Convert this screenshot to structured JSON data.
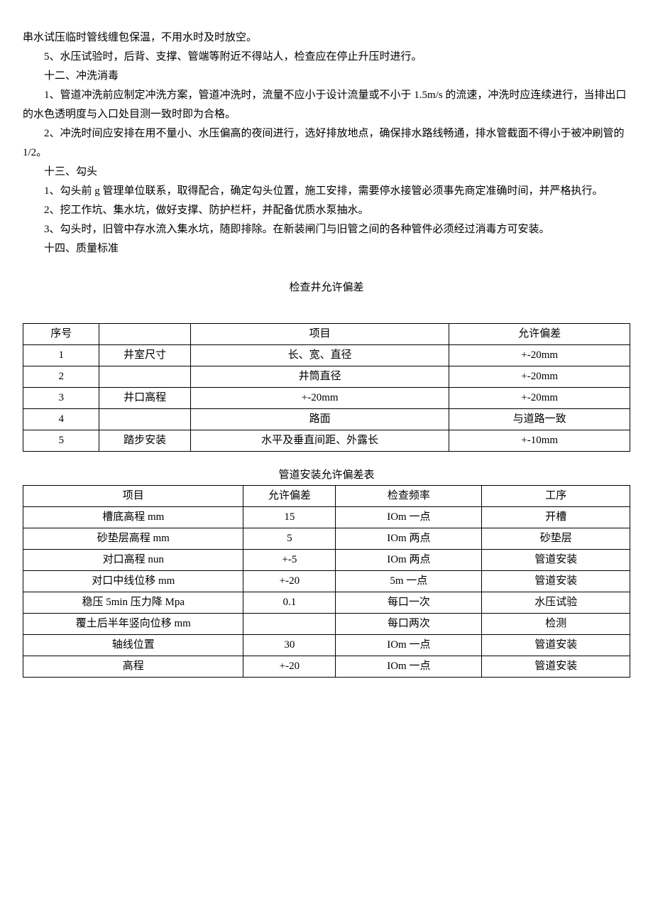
{
  "paras": [
    {
      "cls": "para-noindent",
      "text": "串水试压临时管线缠包保温，不用水时及时放空。"
    },
    {
      "cls": "para",
      "text": "5、水压试验时，后背、支撑、管端等附近不得站人，检查应在停止升压时进行。"
    },
    {
      "cls": "para",
      "text": "十二、冲洗消毒"
    },
    {
      "cls": "para",
      "text": "1、管道冲洗前应制定冲洗方案，管道冲洗时，流量不应小于设计流量或不小于 1.5m/s 的流速，冲洗时应连续进行，当排出口的水色透明度与入口处目测一致时即为合格。"
    },
    {
      "cls": "para",
      "text": "2、冲洗时间应安排在用不量小、水压偏高的夜间进行，选好排放地点，确保排水路线畅通，排水管截面不得小于被冲刷管的 1/2。"
    },
    {
      "cls": "para",
      "text": "十三、勾头"
    },
    {
      "cls": "para",
      "text": "1、勾头前 g 管理单位联系，取得配合，确定勾头位置，施工安排，需要停水接管必须事先商定准确时间，并严格执行。"
    },
    {
      "cls": "para",
      "text": "2、挖工作坑、集水坑，做好支撑、防护栏杆，并配备优质水泵抽水。"
    },
    {
      "cls": "para",
      "text": "3、勾头时，旧管中存水流入集水坑，随即排除。在新装闸门与旧管之间的各种管件必须经过消毒方可安装。"
    },
    {
      "cls": "para",
      "text": "十四、质量标准"
    }
  ],
  "table1": {
    "title": "检查井允许偏差",
    "header": [
      "序号",
      "",
      "项目",
      "允许偏差"
    ],
    "rows": [
      [
        "1",
        "井室尺寸",
        "长、宽、直径",
        "+-20mm"
      ],
      [
        "2",
        "",
        "井筒直径",
        "+-20mm"
      ],
      [
        "3",
        "井口高程",
        "+-20mm",
        "+-20mm"
      ],
      [
        "4",
        "",
        "路面",
        "与道路一致"
      ],
      [
        "5",
        "踏步安装",
        "水平及垂直间距、外露长",
        "+-10mm"
      ]
    ]
  },
  "table2": {
    "title": "管道安装允许偏差表",
    "header": [
      "项目",
      "允许偏差",
      "检查频率",
      "工序"
    ],
    "rows": [
      [
        "槽底高程 mm",
        "15",
        "IOm 一点",
        "开槽"
      ],
      [
        "砂垫层高程 mm",
        "5",
        "IOm 两点",
        "砂垫层"
      ],
      [
        "对口高程 nun",
        "+-5",
        "IOm 两点",
        "管道安装"
      ],
      [
        "对口中线位移 mm",
        "+-20",
        "5m 一点",
        "管道安装"
      ],
      [
        "稳压 5min 压力降 Mpa",
        "0.1",
        "每口一次",
        "水压试验"
      ],
      [
        "覆土后半年竖向位移 mm",
        "",
        "每口两次",
        "检测"
      ],
      [
        "轴线位置",
        "30",
        "IOm 一点",
        "管道安装"
      ],
      [
        "高程",
        "+-20",
        "IOm 一点",
        "管道安装"
      ]
    ]
  }
}
